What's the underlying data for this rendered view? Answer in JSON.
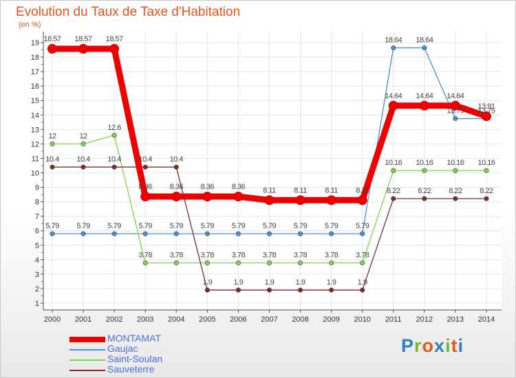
{
  "title": "Evolution du Taux de Taxe d'Habitation",
  "unit_label": "(en %)",
  "logo": {
    "parts": [
      "P",
      "r",
      "o",
      "x",
      "i",
      "t",
      "i"
    ],
    "colors": [
      "#2f7fc1",
      "#7ab829",
      "#e8541b",
      "#2f7fc1",
      "#7ab829",
      "#e8541b",
      "#2f7fc1"
    ]
  },
  "chart_data": {
    "type": "line",
    "title": "Evolution du Taux de Taxe d'Habitation",
    "ylabel": "(en %)",
    "xlabel": "",
    "x": [
      "2000",
      "2001",
      "2002",
      "2003",
      "2004",
      "2005",
      "2006",
      "2007",
      "2008",
      "2009",
      "2010",
      "2011",
      "2012",
      "2013",
      "2014"
    ],
    "ylim": [
      0,
      19
    ],
    "yticks": [
      1,
      2,
      3,
      4,
      5,
      6,
      7,
      8,
      9,
      10,
      11,
      12,
      13,
      14,
      15,
      16,
      17,
      18,
      19
    ],
    "grid": true,
    "legend_position": "bottom-left",
    "series": [
      {
        "name": "MONTAMAT",
        "color": "#ee0000",
        "values": [
          18.57,
          18.57,
          18.57,
          8.36,
          8.36,
          8.36,
          8.36,
          8.11,
          8.11,
          8.11,
          8.11,
          14.64,
          14.64,
          14.64,
          13.91
        ],
        "labels": [
          "18.57",
          "18.57",
          "18.57",
          "8.36",
          "8.36",
          "8.36",
          "8.36",
          "8.11",
          "8.11",
          "8.11",
          "8.11",
          "14.64",
          "14.64",
          "14.64",
          "13.91"
        ]
      },
      {
        "name": "Gaujac",
        "color": "#4a8fd0",
        "values": [
          5.79,
          5.79,
          5.79,
          5.79,
          5.79,
          5.79,
          5.79,
          5.79,
          5.79,
          5.79,
          5.79,
          18.64,
          18.64,
          13.75,
          13.75
        ],
        "labels": [
          "5.79",
          "5.79",
          "5.79",
          "5.79",
          "5.79",
          "5.79",
          "5.79",
          "5.79",
          "5.79",
          "5.79",
          "5.79",
          "18.64",
          "18.64",
          "13.75",
          "13.75"
        ]
      },
      {
        "name": "Saint-Soulan",
        "color": "#7fd34e",
        "values": [
          12,
          12,
          12.6,
          3.78,
          3.78,
          3.78,
          3.78,
          3.78,
          3.78,
          3.78,
          3.78,
          10.16,
          10.16,
          10.16,
          10.16
        ],
        "labels": [
          "12",
          "12",
          "12.6",
          "3.78",
          "3.78",
          "3.78",
          "3.78",
          "3.78",
          "3.78",
          "3.78",
          "3.78",
          "10.16",
          "10.16",
          "10.16",
          "10.16"
        ]
      },
      {
        "name": "Sauveterre",
        "color": "#7a2a2a",
        "values": [
          10.4,
          10.4,
          10.4,
          10.4,
          10.4,
          1.9,
          1.9,
          1.9,
          1.9,
          1.9,
          1.9,
          8.22,
          8.22,
          8.22,
          8.22
        ],
        "labels": [
          "10.4",
          "10.4",
          "10.4",
          "10.4",
          "10.4",
          "1.9",
          "1.9",
          "1.9",
          "1.9",
          "1.9",
          "1.9",
          "8.22",
          "8.22",
          "8.22",
          "8.22"
        ]
      }
    ]
  }
}
